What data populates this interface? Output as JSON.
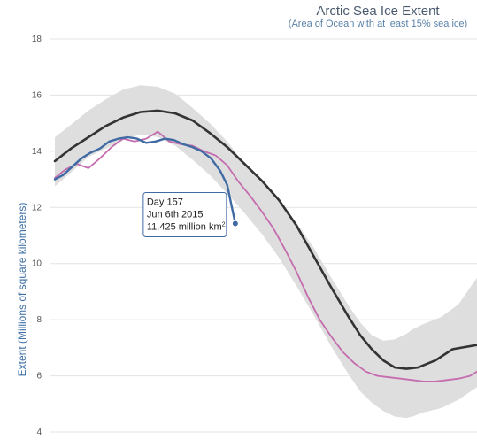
{
  "chart_data": {
    "type": "line",
    "title": "Arctic Sea Ice Extent",
    "subtitle": "(Area of Ocean with at least 15% sea ice)",
    "ylabel": "Extent (Millions of square kilometers)",
    "xlabel": "",
    "ylim": [
      4,
      18
    ],
    "xlim": [
      1,
      366
    ],
    "yticks": [
      4,
      6,
      8,
      10,
      12,
      14,
      16,
      18
    ],
    "grid": true,
    "colors": {
      "band": "#dcdcdc",
      "mean": "#333333",
      "y2014": "#c46cae",
      "y2015": "#3f6aa3",
      "grid": "#e3e3e3"
    },
    "band": {
      "x": [
        1,
        15,
        30,
        45,
        60,
        75,
        90,
        105,
        120,
        135,
        150,
        165,
        180,
        195,
        210,
        225,
        240,
        255,
        265,
        275,
        285,
        295,
        305,
        310,
        320,
        335,
        350,
        366
      ],
      "upper": [
        14.5,
        14.95,
        15.45,
        15.85,
        16.2,
        16.35,
        16.3,
        16.05,
        15.55,
        15.0,
        14.35,
        13.55,
        12.9,
        12.2,
        11.45,
        10.55,
        9.5,
        8.5,
        7.9,
        7.45,
        7.25,
        7.3,
        7.5,
        7.65,
        7.85,
        8.1,
        8.55,
        9.5
      ],
      "lower": [
        12.75,
        13.25,
        13.8,
        14.1,
        14.4,
        14.6,
        14.5,
        14.2,
        13.7,
        13.15,
        12.5,
        11.8,
        11.05,
        10.2,
        9.2,
        8.15,
        7.05,
        6.05,
        5.45,
        5.05,
        4.75,
        4.55,
        4.5,
        4.55,
        4.7,
        4.85,
        5.15,
        5.6
      ]
    },
    "series": [
      {
        "key": "mean",
        "x": [
          1,
          15,
          30,
          45,
          60,
          75,
          90,
          105,
          120,
          135,
          150,
          165,
          180,
          195,
          210,
          225,
          240,
          255,
          265,
          275,
          285,
          295,
          305,
          315,
          330,
          345,
          366
        ],
        "values": [
          13.65,
          14.1,
          14.5,
          14.9,
          15.2,
          15.4,
          15.45,
          15.35,
          15.1,
          14.65,
          14.15,
          13.55,
          12.95,
          12.25,
          11.35,
          10.25,
          9.15,
          8.1,
          7.45,
          6.95,
          6.55,
          6.3,
          6.25,
          6.3,
          6.55,
          6.95,
          7.1
        ]
      },
      {
        "key": "y2014",
        "x": [
          1,
          10,
          20,
          30,
          40,
          50,
          60,
          70,
          80,
          90,
          100,
          110,
          120,
          130,
          140,
          150,
          160,
          170,
          180,
          190,
          200,
          210,
          220,
          230,
          240,
          250,
          260,
          270,
          280,
          290,
          300,
          310,
          320,
          330,
          340,
          350,
          360,
          366
        ],
        "values": [
          13.05,
          13.35,
          13.55,
          13.4,
          13.75,
          14.15,
          14.45,
          14.35,
          14.45,
          14.7,
          14.35,
          14.25,
          14.2,
          14.0,
          13.85,
          13.5,
          12.9,
          12.4,
          11.85,
          11.25,
          10.5,
          9.7,
          8.8,
          8.0,
          7.4,
          6.85,
          6.45,
          6.15,
          6.0,
          5.95,
          5.9,
          5.85,
          5.8,
          5.8,
          5.85,
          5.9,
          6.0,
          6.15
        ]
      },
      {
        "key": "y2015",
        "x": [
          1,
          8,
          16,
          24,
          32,
          40,
          48,
          56,
          64,
          72,
          80,
          88,
          96,
          104,
          112,
          120,
          128,
          136,
          144,
          150,
          157
        ],
        "values": [
          13.0,
          13.15,
          13.45,
          13.75,
          13.95,
          14.1,
          14.35,
          14.45,
          14.5,
          14.45,
          14.3,
          14.35,
          14.45,
          14.4,
          14.25,
          14.15,
          14.0,
          13.75,
          13.3,
          12.8,
          11.425
        ]
      }
    ],
    "tooltip": {
      "line1": "Day 157",
      "line2": "Jun 6th 2015",
      "line3": "11.425 million km",
      "sup": "2"
    }
  }
}
